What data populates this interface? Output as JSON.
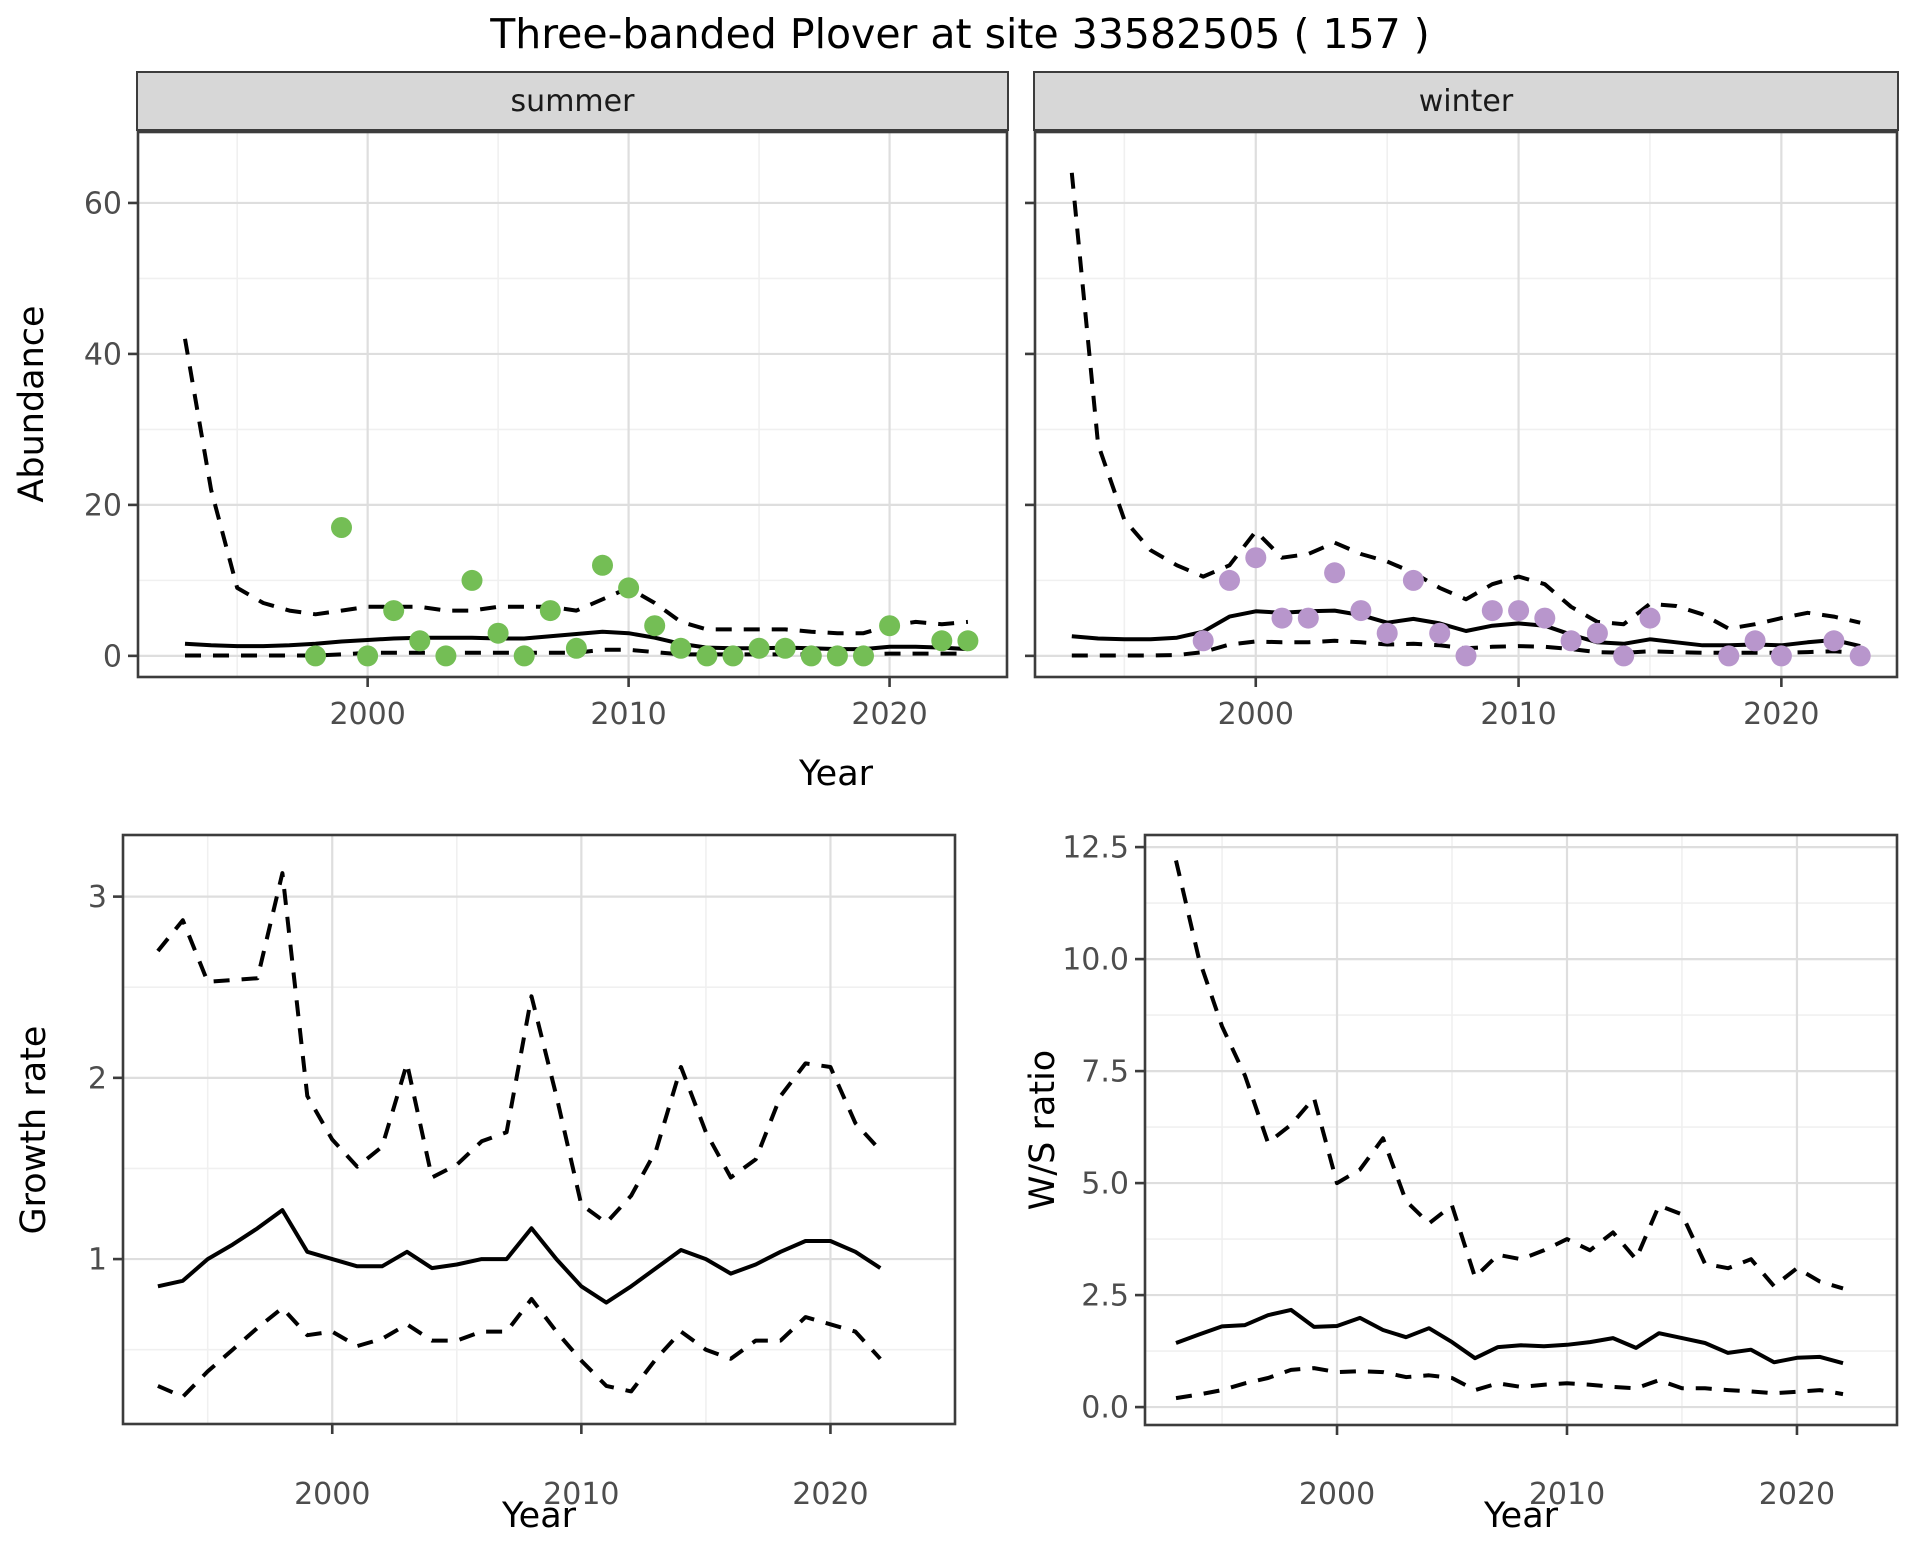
{
  "title": "Three-banded Plover at site 33582505 ( 157 )",
  "facets": [
    {
      "label": "summer"
    },
    {
      "label": "winter"
    }
  ],
  "axis_titles": {
    "abundance": "Abundance",
    "year": "Year",
    "growth_rate": "Growth rate",
    "ws_ratio": "W/S ratio"
  },
  "colors": {
    "summer_point": "#74BE55",
    "winter_point": "#B896CC",
    "line": "#000000",
    "strip_bg": "#D7D7D7",
    "panel_border": "#3c3c3c",
    "grid_major": "#DEDEDE",
    "grid_minor": "#F0F0F0",
    "tick_text": "#4d4d4d"
  },
  "chart_data": [
    {
      "name": "abundance-summer",
      "type": "line",
      "facet": "summer",
      "xlabel": "Year",
      "ylabel": "Abundance",
      "xlim": [
        1991.2,
        2024.5
      ],
      "ylim": [
        -2.8,
        69.4
      ],
      "x_ticks": [
        2000,
        2010,
        2020
      ],
      "x_tick_labels": [
        "2000",
        "2010",
        "2020"
      ],
      "x_minor": [
        1995,
        2005,
        2015
      ],
      "y_ticks": [
        0,
        20,
        40,
        60
      ],
      "y_tick_labels": [
        "0",
        "20",
        "40",
        "60"
      ],
      "y_minor": [
        10,
        30,
        50
      ],
      "years": [
        1993,
        1994,
        1995,
        1996,
        1997,
        1998,
        1999,
        2000,
        2001,
        2002,
        2003,
        2004,
        2005,
        2006,
        2007,
        2008,
        2009,
        2010,
        2011,
        2012,
        2013,
        2014,
        2015,
        2016,
        2017,
        2018,
        2019,
        2020,
        2021,
        2022,
        2023
      ],
      "series": [
        {
          "name": "index",
          "style": "solid",
          "values": [
            1.6,
            1.4,
            1.3,
            1.3,
            1.4,
            1.6,
            1.9,
            2.1,
            2.3,
            2.4,
            2.4,
            2.4,
            2.3,
            2.3,
            2.6,
            2.9,
            3.2,
            3.0,
            2.4,
            1.6,
            1.1,
            1.0,
            1.0,
            1.1,
            1.0,
            0.9,
            0.9,
            1.2,
            1.2,
            1.1,
            0.9
          ]
        },
        {
          "name": "upper-ci",
          "style": "dashed",
          "values": [
            42,
            22,
            9,
            7,
            6,
            5.5,
            6,
            6.5,
            6.5,
            6.5,
            6,
            6,
            6.5,
            6.5,
            6.5,
            6,
            7.5,
            9,
            7,
            4.5,
            3.5,
            3.5,
            3.5,
            3.5,
            3.2,
            3,
            3,
            4,
            4.5,
            4.2,
            4.5
          ]
        },
        {
          "name": "lower-ci",
          "style": "dashed",
          "values": [
            0.05,
            0.05,
            0.05,
            0.05,
            0.05,
            0.05,
            0.2,
            0.4,
            0.4,
            0.4,
            0.4,
            0.4,
            0.4,
            0.4,
            0.4,
            0.4,
            0.8,
            0.8,
            0.5,
            0.2,
            0.2,
            0.2,
            0.2,
            0.2,
            0.2,
            0.2,
            0.2,
            0.3,
            0.3,
            0.3,
            0.3
          ]
        }
      ],
      "points": {
        "color_key": "summer_point",
        "years": [
          1998,
          1999,
          2000,
          2001,
          2002,
          2003,
          2004,
          2005,
          2006,
          2007,
          2008,
          2009,
          2010,
          2011,
          2012,
          2013,
          2014,
          2015,
          2016,
          2017,
          2018,
          2019,
          2020,
          2022,
          2023
        ],
        "values": [
          0,
          17,
          0,
          6,
          2,
          0,
          10,
          3,
          0,
          6,
          1,
          12,
          9,
          4,
          1,
          0,
          0,
          1,
          1,
          0,
          0,
          0,
          4,
          2,
          2
        ]
      }
    },
    {
      "name": "abundance-winter",
      "type": "line",
      "facet": "winter",
      "xlabel": "Year",
      "ylabel": "Abundance",
      "xlim": [
        1991.6,
        2024.4
      ],
      "ylim": [
        -2.8,
        69.4
      ],
      "x_ticks": [
        2000,
        2010,
        2020
      ],
      "x_tick_labels": [
        "2000",
        "2010",
        "2020"
      ],
      "x_minor": [
        1995,
        2005,
        2015
      ],
      "y_ticks": [
        0,
        20,
        40,
        60
      ],
      "y_tick_labels": [
        "0",
        "20",
        "40",
        "60"
      ],
      "y_minor": [
        10,
        30,
        50
      ],
      "years": [
        1993,
        1994,
        1995,
        1996,
        1997,
        1998,
        1999,
        2000,
        2001,
        2002,
        2003,
        2004,
        2005,
        2006,
        2007,
        2008,
        2009,
        2010,
        2011,
        2012,
        2013,
        2014,
        2015,
        2016,
        2017,
        2018,
        2019,
        2020,
        2021,
        2022,
        2023
      ],
      "series": [
        {
          "name": "index",
          "style": "solid",
          "values": [
            2.6,
            2.3,
            2.2,
            2.2,
            2.4,
            3.2,
            5.2,
            5.9,
            5.7,
            5.9,
            6.0,
            5.4,
            4.4,
            4.9,
            4.3,
            3.3,
            4.0,
            4.3,
            4.0,
            2.8,
            1.8,
            1.6,
            2.2,
            1.8,
            1.4,
            1.4,
            1.5,
            1.4,
            1.8,
            2.1,
            1.3
          ]
        },
        {
          "name": "upper-ci",
          "style": "dashed",
          "values": [
            64,
            28,
            18,
            14,
            12,
            10.5,
            12,
            16.5,
            13,
            13.5,
            15,
            13.5,
            12.5,
            11,
            9,
            7.5,
            9.5,
            10.5,
            9.5,
            6.5,
            4.5,
            4.2,
            6.9,
            6.6,
            5.5,
            3.6,
            4.2,
            5.0,
            5.7,
            5.2,
            4.4
          ]
        },
        {
          "name": "lower-ci",
          "style": "dashed",
          "values": [
            0.05,
            0.05,
            0.05,
            0.05,
            0.1,
            0.5,
            1.5,
            1.9,
            1.8,
            1.8,
            2.0,
            1.8,
            1.5,
            1.6,
            1.4,
            1.0,
            1.2,
            1.3,
            1.2,
            0.9,
            0.5,
            0.4,
            0.6,
            0.5,
            0.4,
            0.4,
            0.4,
            0.4,
            0.5,
            0.6,
            0.4
          ]
        }
      ],
      "points": {
        "color_key": "winter_point",
        "years": [
          1998,
          1999,
          2000,
          2001,
          2002,
          2003,
          2004,
          2005,
          2006,
          2007,
          2008,
          2009,
          2010,
          2011,
          2012,
          2013,
          2014,
          2015,
          2018,
          2019,
          2020,
          2022,
          2023
        ],
        "values": [
          2,
          10,
          13,
          5,
          5,
          11,
          6,
          3,
          10,
          3,
          0,
          6,
          6,
          5,
          2,
          3,
          0,
          5,
          0,
          2,
          0,
          2,
          0
        ]
      }
    },
    {
      "name": "growth-rate",
      "type": "line",
      "xlabel": "Year",
      "ylabel": "Growth rate",
      "xlim": [
        1991.6,
        2025.0
      ],
      "ylim": [
        0.09,
        3.34
      ],
      "x_ticks": [
        2000,
        2010,
        2020
      ],
      "x_tick_labels": [
        "2000",
        "2010",
        "2020"
      ],
      "x_minor": [
        1995,
        2005,
        2015
      ],
      "y_ticks": [
        1,
        2,
        3
      ],
      "y_tick_labels": [
        "1",
        "2",
        "3"
      ],
      "y_minor": [
        0.5,
        1.5,
        2.5
      ],
      "years": [
        1993,
        1994,
        1995,
        1996,
        1997,
        1998,
        1999,
        2000,
        2001,
        2002,
        2003,
        2004,
        2005,
        2006,
        2007,
        2008,
        2009,
        2010,
        2011,
        2012,
        2013,
        2014,
        2015,
        2016,
        2017,
        2018,
        2019,
        2020,
        2021,
        2022
      ],
      "series": [
        {
          "name": "growth-rate",
          "style": "solid",
          "values": [
            0.85,
            0.88,
            1.0,
            1.08,
            1.17,
            1.27,
            1.04,
            1.0,
            0.96,
            0.96,
            1.04,
            0.95,
            0.97,
            1.0,
            1.0,
            1.17,
            1.0,
            0.85,
            0.76,
            0.85,
            0.95,
            1.05,
            1.0,
            0.92,
            0.97,
            1.04,
            1.1,
            1.1,
            1.04,
            0.95
          ]
        },
        {
          "name": "upper-ci",
          "style": "dashed",
          "values": [
            2.7,
            2.87,
            2.53,
            2.54,
            2.55,
            3.13,
            1.9,
            1.66,
            1.51,
            1.62,
            2.08,
            1.45,
            1.52,
            1.65,
            1.7,
            2.45,
            1.9,
            1.3,
            1.2,
            1.35,
            1.6,
            2.06,
            1.7,
            1.45,
            1.55,
            1.9,
            2.08,
            2.06,
            1.75,
            1.6
          ]
        },
        {
          "name": "lower-ci",
          "style": "dashed",
          "values": [
            0.3,
            0.24,
            0.38,
            0.5,
            0.62,
            0.73,
            0.58,
            0.6,
            0.52,
            0.56,
            0.64,
            0.55,
            0.55,
            0.6,
            0.6,
            0.78,
            0.6,
            0.44,
            0.3,
            0.27,
            0.45,
            0.6,
            0.5,
            0.45,
            0.55,
            0.55,
            0.68,
            0.64,
            0.6,
            0.45
          ]
        }
      ]
    },
    {
      "name": "ws-ratio",
      "type": "line",
      "xlabel": "Year",
      "ylabel": "W/S ratio",
      "xlim": [
        1991.65,
        2024.35
      ],
      "ylim": [
        -0.4,
        12.77
      ],
      "x_ticks": [
        2000,
        2010,
        2020
      ],
      "x_tick_labels": [
        "2000",
        "2010",
        "2020"
      ],
      "x_minor": [
        1995,
        2005,
        2015
      ],
      "y_ticks": [
        0,
        2.5,
        5,
        7.5,
        10,
        12.5
      ],
      "y_tick_labels": [
        "0.0",
        "2.5",
        "5.0",
        "7.5",
        "10.0",
        "12.5"
      ],
      "y_minor": [
        1.25,
        3.75,
        6.25,
        8.75,
        11.25
      ],
      "years": [
        1993,
        1994,
        1995,
        1996,
        1997,
        1998,
        1999,
        2000,
        2001,
        2002,
        2003,
        2004,
        2005,
        2006,
        2007,
        2008,
        2009,
        2010,
        2011,
        2012,
        2013,
        2014,
        2015,
        2016,
        2017,
        2018,
        2019,
        2020,
        2021,
        2022
      ],
      "series": [
        {
          "name": "ws-ratio",
          "style": "solid",
          "values": [
            1.43,
            1.62,
            1.8,
            1.83,
            2.05,
            2.17,
            1.79,
            1.81,
            1.99,
            1.72,
            1.56,
            1.76,
            1.45,
            1.09,
            1.34,
            1.38,
            1.36,
            1.39,
            1.45,
            1.54,
            1.32,
            1.65,
            1.54,
            1.43,
            1.21,
            1.28,
            1.0,
            1.1,
            1.12,
            0.98
          ]
        },
        {
          "name": "upper-ci",
          "style": "dashed",
          "values": [
            12.2,
            10.0,
            8.5,
            7.4,
            5.9,
            6.3,
            6.9,
            5.0,
            5.3,
            6.0,
            4.6,
            4.1,
            4.5,
            2.9,
            3.4,
            3.3,
            3.5,
            3.75,
            3.5,
            3.9,
            3.3,
            4.5,
            4.3,
            3.2,
            3.1,
            3.3,
            2.7,
            3.1,
            2.8,
            2.65
          ]
        },
        {
          "name": "lower-ci",
          "style": "dashed",
          "values": [
            0.2,
            0.28,
            0.38,
            0.53,
            0.65,
            0.83,
            0.87,
            0.78,
            0.8,
            0.78,
            0.67,
            0.71,
            0.65,
            0.38,
            0.53,
            0.45,
            0.5,
            0.53,
            0.5,
            0.45,
            0.42,
            0.6,
            0.42,
            0.42,
            0.38,
            0.35,
            0.31,
            0.34,
            0.38,
            0.29
          ]
        }
      ]
    }
  ]
}
